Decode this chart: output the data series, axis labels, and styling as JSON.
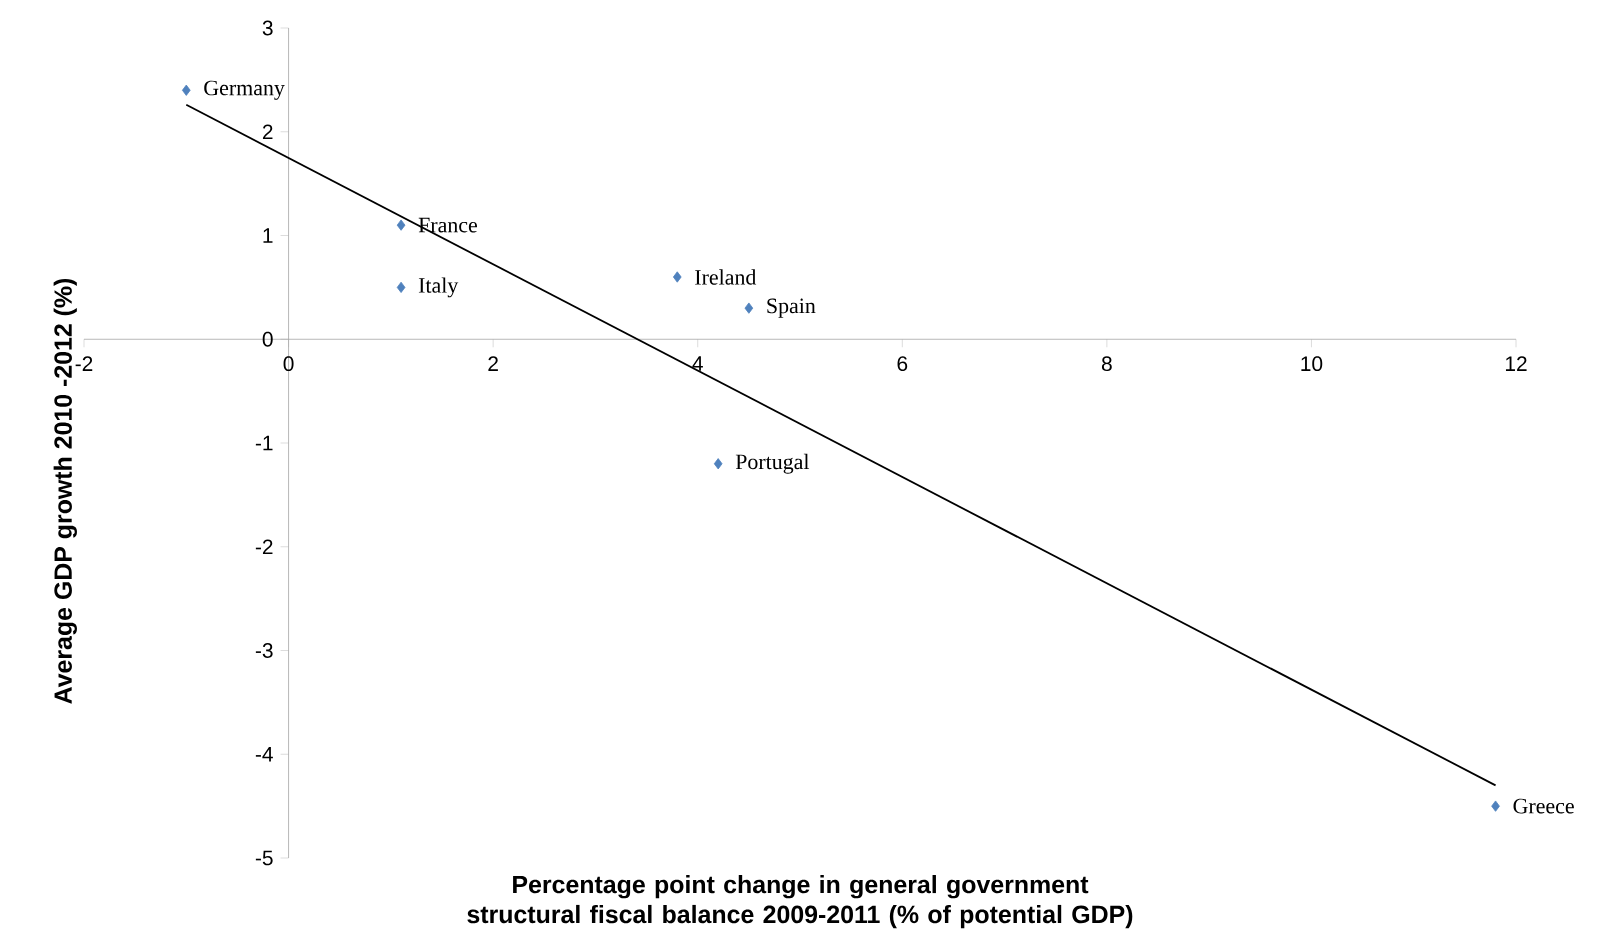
{
  "chart_data": {
    "type": "scatter",
    "xlabel": "Percentage point change in general government structural fiscal balance 2009-2011 (% of potential GDP)",
    "ylabel": "Average GDP growth 2010 -2012 (%)",
    "xlim": [
      -2,
      12
    ],
    "ylim": [
      -5,
      3
    ],
    "xticks": [
      -2,
      0,
      2,
      4,
      6,
      8,
      10,
      12
    ],
    "yticks": [
      -5,
      -4,
      -3,
      -2,
      -1,
      0,
      1,
      2,
      3
    ],
    "grid": false,
    "series": [
      {
        "type": "scatter",
        "marker": "diamond",
        "color": "#4f81bd",
        "x": [
          -1.0,
          1.1,
          1.1,
          3.8,
          4.5,
          4.2,
          11.8
        ],
        "values": [
          2.4,
          1.1,
          0.5,
          0.6,
          0.3,
          -1.2,
          -4.5
        ]
      },
      {
        "type": "line",
        "marker": "none",
        "line_style": "solid",
        "color": "#000000",
        "x": [
          -1.0,
          11.8
        ],
        "values": [
          2.26,
          -4.3
        ]
      }
    ],
    "annotations": [
      {
        "text": "Germany",
        "x": -1.0,
        "y": 2.4
      },
      {
        "text": "France",
        "x": 1.1,
        "y": 1.1
      },
      {
        "text": "Italy",
        "x": 1.1,
        "y": 0.5
      },
      {
        "text": "Ireland",
        "x": 3.8,
        "y": 0.6
      },
      {
        "text": "Spain",
        "x": 4.5,
        "y": 0.3
      },
      {
        "text": "Portugal",
        "x": 4.2,
        "y": -1.2
      },
      {
        "text": "Greece",
        "x": 11.8,
        "y": -4.5
      }
    ]
  }
}
